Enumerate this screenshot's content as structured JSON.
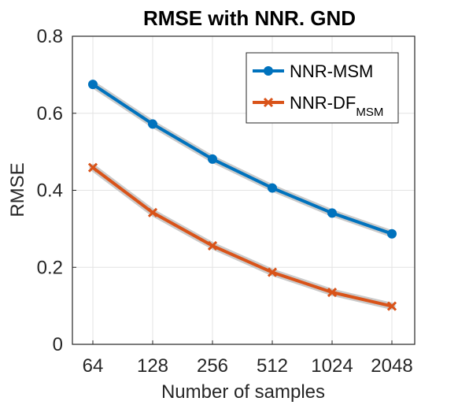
{
  "chart_data": {
    "type": "line",
    "title": "RMSE with NNR. GND",
    "xlabel": "Number of samples",
    "ylabel": "RMSE",
    "categories": [
      "64",
      "128",
      "256",
      "512",
      "1024",
      "2048"
    ],
    "ylim": [
      0,
      0.8
    ],
    "yticks": [
      "0",
      "0.2",
      "0.4",
      "0.6",
      "0.8"
    ],
    "grid": true,
    "legend_position": "top-right",
    "series": [
      {
        "name": "NNR-MSM",
        "name_main": "NNR-MSM",
        "name_sub": "",
        "marker": "circle",
        "color": "#0072BD",
        "values": [
          0.675,
          0.572,
          0.481,
          0.406,
          0.341,
          0.287
        ]
      },
      {
        "name": "NNR-DF MSM",
        "name_main": "NNR-DF",
        "name_sub": "MSM",
        "marker": "x",
        "color": "#D95319",
        "values": [
          0.459,
          0.342,
          0.256,
          0.187,
          0.135,
          0.099
        ]
      }
    ],
    "band_color": "#bdbdbd"
  }
}
